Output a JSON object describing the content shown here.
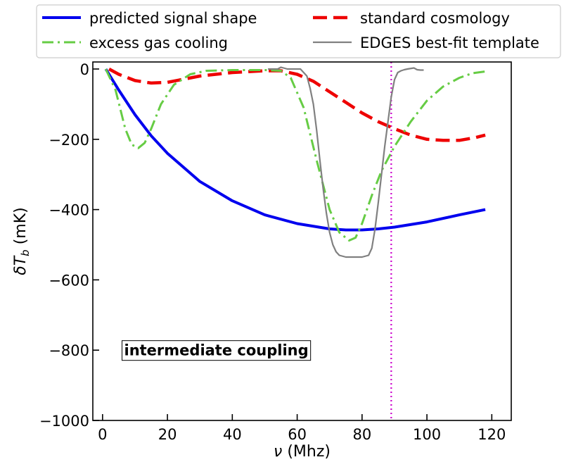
{
  "chart_data": {
    "type": "line",
    "xlabel_symbol": "ν",
    "xlabel_unit": "(Mhz)",
    "ylabel_symbol": "δT",
    "ylabel_sub": "b",
    "ylabel_unit": "(mK)",
    "xlim": [
      -3,
      126
    ],
    "ylim": [
      -1000,
      20
    ],
    "xticks": [
      0,
      20,
      40,
      60,
      80,
      100,
      120
    ],
    "yticks": [
      0,
      -200,
      -400,
      -600,
      -800,
      -1000
    ],
    "xtick_labels": [
      "0",
      "20",
      "40",
      "60",
      "80",
      "100",
      "120"
    ],
    "ytick_labels": [
      "0",
      "−200",
      "−400",
      "−600",
      "−800",
      "−1000"
    ],
    "annotation": "intermediate coupling",
    "vline": {
      "x": 89,
      "color": "#cc00cc",
      "style": "dotted"
    },
    "legend_position": "top (above plot)",
    "series": [
      {
        "name": "predicted signal shape",
        "color": "#0000ee",
        "style": "solid",
        "x": [
          1,
          5,
          10,
          15,
          20,
          30,
          40,
          50,
          60,
          70,
          75,
          80,
          85,
          90,
          100,
          110,
          118
        ],
        "y": [
          0,
          -60,
          -130,
          -190,
          -240,
          -320,
          -375,
          -415,
          -440,
          -455,
          -458,
          -458,
          -455,
          -450,
          -435,
          -415,
          -400
        ]
      },
      {
        "name": "standard cosmology",
        "color": "#ee0000",
        "style": "dashed",
        "x": [
          2,
          5,
          10,
          15,
          20,
          30,
          40,
          50,
          55,
          60,
          65,
          70,
          75,
          80,
          85,
          90,
          95,
          100,
          105,
          110,
          115,
          118
        ],
        "y": [
          0,
          -15,
          -33,
          -40,
          -38,
          -20,
          -10,
          -5,
          -5,
          -15,
          -35,
          -65,
          -95,
          -125,
          -150,
          -170,
          -188,
          -200,
          -203,
          -203,
          -195,
          -188
        ]
      },
      {
        "name": "excess gas cooling",
        "color": "#66cc44",
        "style": "dashdot",
        "x": [
          1,
          4,
          7,
          9,
          11,
          13,
          15,
          18,
          22,
          27,
          32,
          40,
          50,
          55,
          58,
          62,
          66,
          70,
          73,
          76,
          78,
          80,
          83,
          86,
          90,
          95,
          100,
          105,
          110,
          114,
          118
        ],
        "y": [
          0,
          -60,
          -170,
          -215,
          -225,
          -210,
          -170,
          -100,
          -45,
          -15,
          -5,
          -3,
          -3,
          -5,
          -25,
          -110,
          -260,
          -400,
          -465,
          -488,
          -480,
          -440,
          -360,
          -290,
          -220,
          -150,
          -90,
          -50,
          -25,
          -12,
          -7
        ]
      },
      {
        "name": "EDGES best-fit template",
        "color": "#808080",
        "style": "solid",
        "x": [
          51,
          54,
          55,
          57,
          61,
          63,
          64,
          65,
          66,
          67,
          68,
          69,
          70,
          71,
          72,
          73,
          75,
          78,
          80,
          82,
          83,
          84,
          85,
          86,
          87,
          88,
          89,
          90,
          91,
          92,
          93,
          94,
          96,
          97,
          98,
          99
        ],
        "y": [
          0,
          0,
          5,
          0,
          0,
          -20,
          -55,
          -100,
          -175,
          -260,
          -340,
          -410,
          -465,
          -500,
          -520,
          -530,
          -535,
          -535,
          -535,
          -530,
          -510,
          -455,
          -380,
          -300,
          -220,
          -150,
          -80,
          -30,
          -10,
          -5,
          -2,
          0,
          3,
          -2,
          -3,
          -3
        ]
      }
    ]
  }
}
